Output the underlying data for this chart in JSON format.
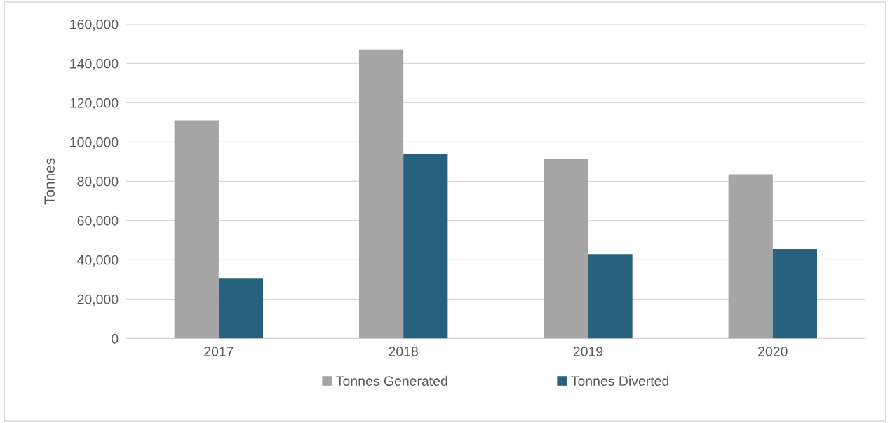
{
  "chart_data": {
    "type": "bar",
    "ylabel": "Tonnes",
    "categories": [
      "2017",
      "2018",
      "2019",
      "2020"
    ],
    "series": [
      {
        "name": "Tonnes Generated",
        "color": "#a5a5a5",
        "values": [
          111000,
          147000,
          91200,
          83500
        ]
      },
      {
        "name": "Tonnes Diverted",
        "color": "#28627e",
        "values": [
          30400,
          93700,
          42900,
          45500
        ]
      }
    ],
    "ylim": [
      0,
      160000
    ],
    "yticks": [
      {
        "value": 0,
        "label": "0"
      },
      {
        "value": 20000,
        "label": "20,000"
      },
      {
        "value": 40000,
        "label": "40,000"
      },
      {
        "value": 60000,
        "label": "60,000"
      },
      {
        "value": 80000,
        "label": "80,000"
      },
      {
        "value": 100000,
        "label": "100,000"
      },
      {
        "value": 120000,
        "label": "120,000"
      },
      {
        "value": 140000,
        "label": "140,000"
      },
      {
        "value": 160000,
        "label": "160,000"
      }
    ],
    "grid": "y",
    "legend": "bottom"
  }
}
